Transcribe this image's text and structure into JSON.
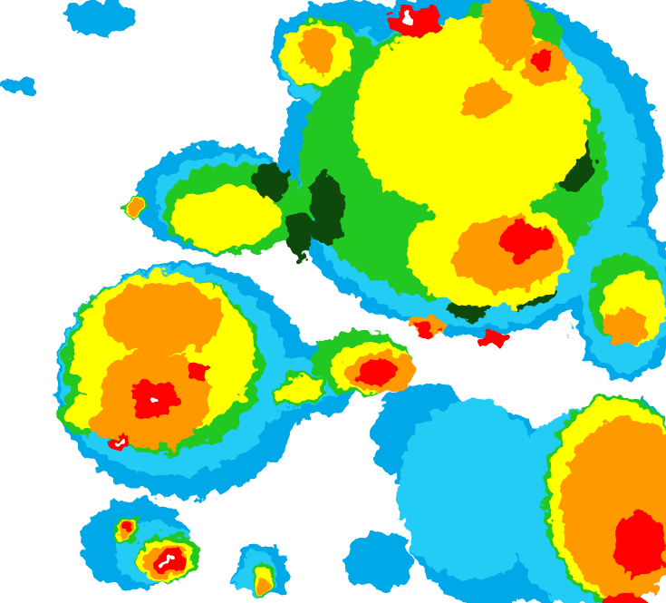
{
  "map": {
    "background": "#ffffff",
    "intensity_levels": [
      {
        "level": 1,
        "color": "#00a8e8"
      },
      {
        "level": 2,
        "color": "#22ccf5"
      },
      {
        "level": 3,
        "color": "#22c722"
      },
      {
        "level": 4,
        "color": "#0b4a0b"
      },
      {
        "level": 5,
        "color": "#ffff00"
      },
      {
        "level": 6,
        "color": "#ff9900"
      },
      {
        "level": 7,
        "color": "#ff0000"
      },
      {
        "level": 8,
        "color": "#ffffff"
      }
    ]
  }
}
